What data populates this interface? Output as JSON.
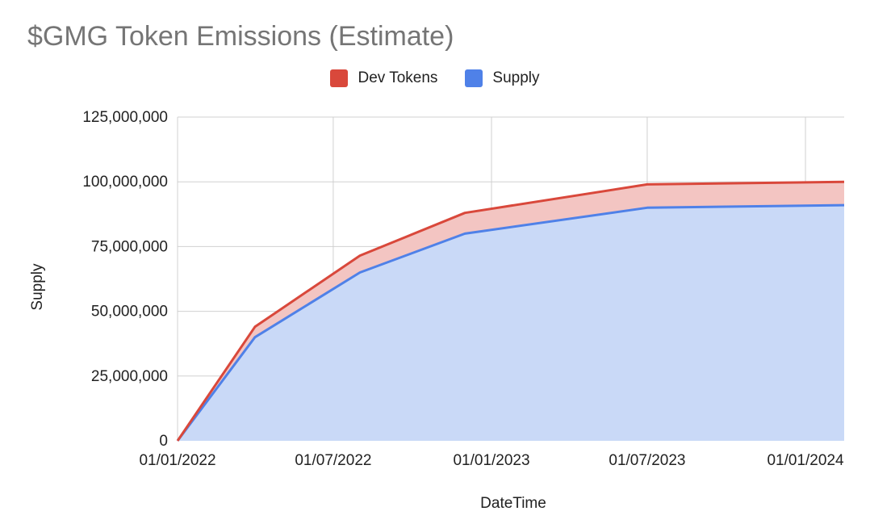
{
  "chart_data": {
    "type": "area",
    "stacked": true,
    "title": "$GMG Token Emissions (Estimate)",
    "xlabel": "DateTime",
    "ylabel": "Supply",
    "xlim": [
      "2022-01-01",
      "2024-02-15"
    ],
    "ylim": [
      0,
      125000000
    ],
    "x_ticks": [
      "01/01/2022",
      "01/07/2022",
      "01/01/2023",
      "01/07/2023",
      "01/01/2024"
    ],
    "x_tick_dates": [
      "2022-01-01",
      "2022-07-01",
      "2023-01-01",
      "2023-07-01",
      "2024-01-01"
    ],
    "y_ticks": [
      0,
      25000000,
      50000000,
      75000000,
      100000000,
      125000000
    ],
    "y_tick_labels": [
      "0",
      "25,000,000",
      "50,000,000",
      "75,000,000",
      "100,000,000",
      "125,000,000"
    ],
    "grid": true,
    "legend": "top-center",
    "x": [
      "2022-01-01",
      "2022-04-01",
      "2022-08-01",
      "2022-12-01",
      "2023-07-01",
      "2024-02-15"
    ],
    "series": [
      {
        "name": "Supply",
        "values": [
          0,
          40000000,
          65000000,
          80000000,
          90000000,
          91000000
        ],
        "color": "#4f81e8",
        "fill": "#c9d9f7"
      },
      {
        "name": "Dev Tokens",
        "values": [
          0,
          4000000,
          6500000,
          8000000,
          9000000,
          9000000
        ],
        "color": "#d9483b",
        "fill": "#f3c5c2"
      }
    ]
  }
}
